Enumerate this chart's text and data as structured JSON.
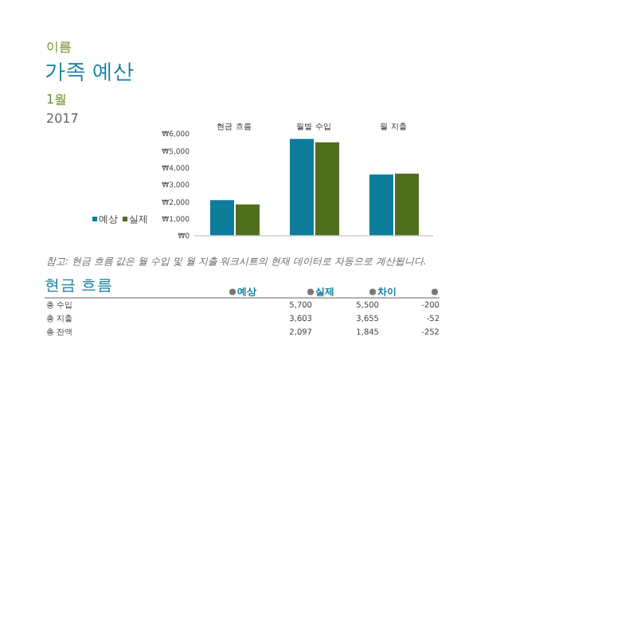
{
  "chart_data": {
    "type": "bar",
    "title": "가족 예산",
    "subtitle": "1월",
    "categories": [
      "현금 흐름",
      "월별 수입",
      "월 지출"
    ],
    "series": [
      {
        "name": "예상",
        "color": "#0e7c9b",
        "values": [
          2097,
          5700,
          3603
        ]
      },
      {
        "name": "실제",
        "color": "#4f6e1e",
        "values": [
          1845,
          5500,
          3655
        ]
      }
    ],
    "ylim": [
      0,
      6000
    ],
    "yticks": [
      {
        "value": 0,
        "label": "₩0"
      },
      {
        "value": 1000,
        "label": "₩1,000"
      },
      {
        "value": 2000,
        "label": "₩2,000"
      },
      {
        "value": 3000,
        "label": "₩3,000"
      },
      {
        "value": 4000,
        "label": "₩4,000"
      },
      {
        "value": 5000,
        "label": "₩5,000"
      },
      {
        "value": 6000,
        "label": "₩6,000"
      }
    ],
    "legend": "left",
    "grid": false,
    "annotations": [
      "이름",
      "2017",
      "참고: 현금 흐름 값은 월 수입 및 월 지출 워크시트의 현재 데이터로 자동으로 계산됩니다.",
      "현금 흐름",
      "예상",
      "실제",
      "차이",
      "총 수입",
      "5,700",
      "5,500",
      "-200",
      "총 지출",
      "3,603",
      "3,655",
      "-52",
      "총 잔액",
      "2,097",
      "1,845",
      "-252"
    ]
  }
}
